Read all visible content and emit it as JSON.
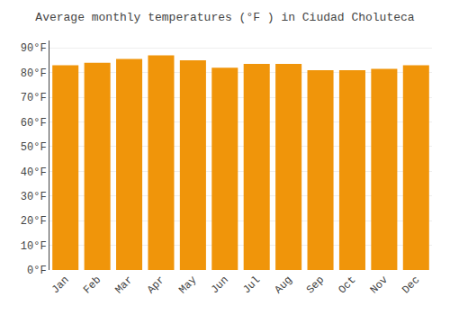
{
  "chart_data": {
    "type": "bar",
    "title": "Average monthly temperatures (°F ) in Ciudad Choluteca",
    "categories": [
      "Jan",
      "Feb",
      "Mar",
      "Apr",
      "May",
      "Jun",
      "Jul",
      "Aug",
      "Sep",
      "Oct",
      "Nov",
      "Dec"
    ],
    "values": [
      83,
      84,
      85.5,
      87,
      85,
      82,
      83.5,
      83.5,
      81,
      81,
      81.5,
      83
    ],
    "color": "#F0950A",
    "ylim": [
      0,
      93
    ],
    "yticks": [
      {
        "value": 0,
        "label": "0°F"
      },
      {
        "value": 10,
        "label": "10°F"
      },
      {
        "value": 20,
        "label": "20°F"
      },
      {
        "value": 30,
        "label": "30°F"
      },
      {
        "value": 40,
        "label": "40°F"
      },
      {
        "value": 50,
        "label": "50°F"
      },
      {
        "value": 60,
        "label": "60°F"
      },
      {
        "value": 70,
        "label": "70°F"
      },
      {
        "value": 80,
        "label": "80°F"
      },
      {
        "value": 90,
        "label": "90°F"
      }
    ],
    "grid": true
  }
}
